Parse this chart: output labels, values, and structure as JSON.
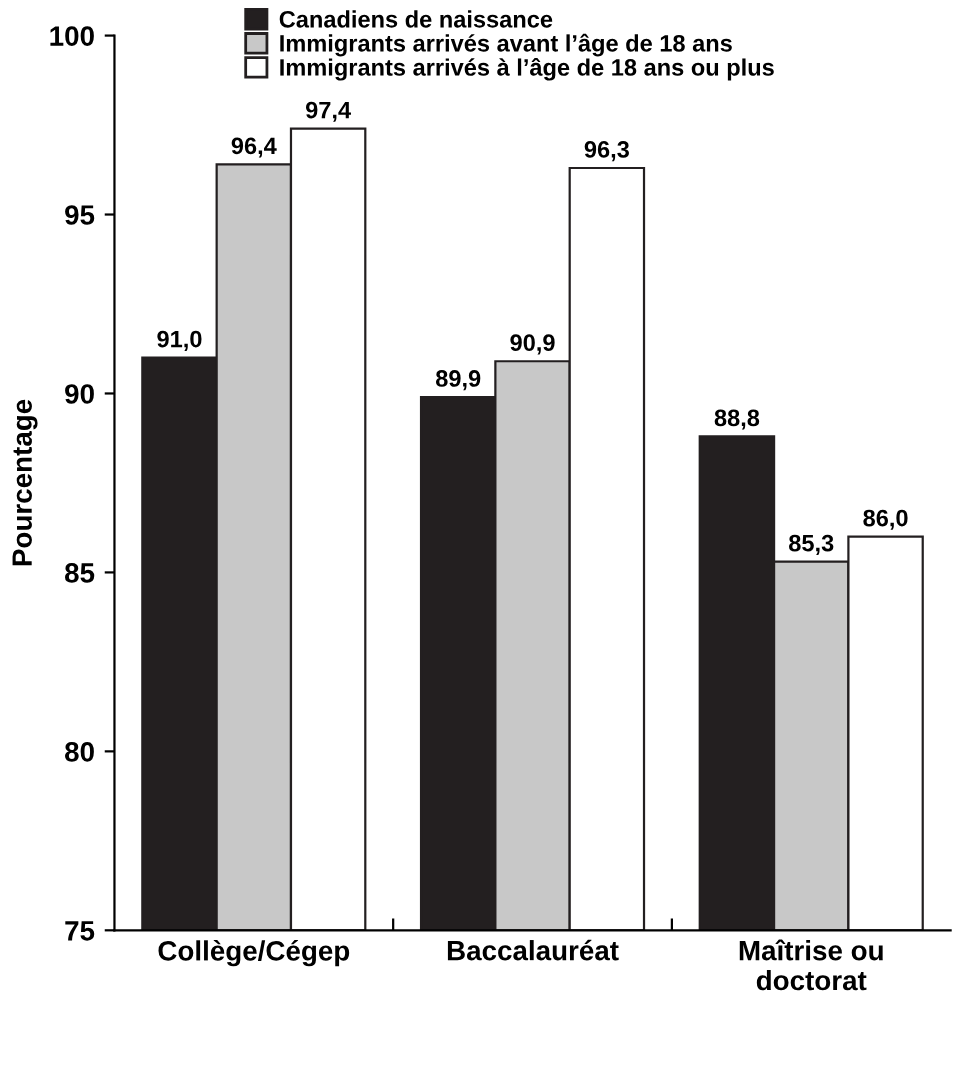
{
  "chart_data": {
    "type": "bar",
    "ylabel": "Pourcentage",
    "categories": [
      "Collège/Cégep",
      "Baccalauréat",
      "Maîtrise ou\ndoctorat"
    ],
    "series": [
      {
        "name": "Canadiens de naissance",
        "color": "#231f20",
        "values": [
          91.0,
          89.9,
          88.8
        ],
        "value_labels": [
          "91,0",
          "89,9",
          "88,8"
        ]
      },
      {
        "name": "Immigrants arrivés avant l’âge de 18 ans",
        "color": "#c8c8c8",
        "values": [
          96.4,
          90.9,
          85.3
        ],
        "value_labels": [
          "96,4",
          "90,9",
          "85,3"
        ]
      },
      {
        "name": "Immigrants arrivés à l’âge de 18 ans ou plus",
        "color": "#ffffff",
        "values": [
          97.4,
          96.3,
          86.0
        ],
        "value_labels": [
          "97,4",
          "96,3",
          "86,0"
        ]
      }
    ],
    "ylim": [
      75,
      100
    ],
    "yticks": [
      75,
      80,
      85,
      90,
      95,
      100
    ],
    "grid": false,
    "legend": "top"
  }
}
